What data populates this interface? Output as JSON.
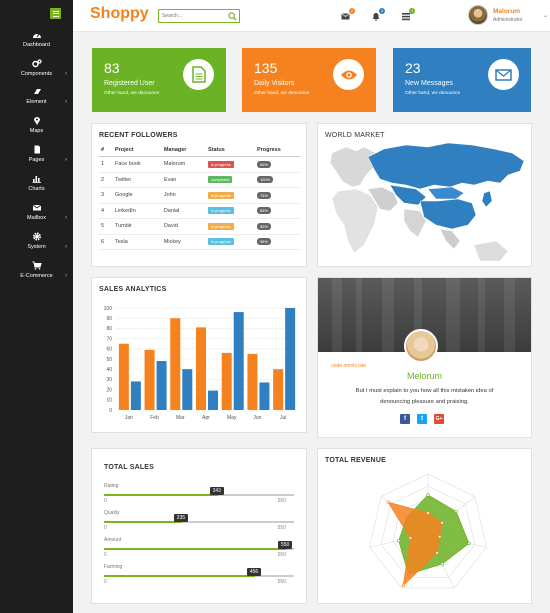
{
  "app": {
    "logo": "Shoppy"
  },
  "search": {
    "placeholder": "Search..."
  },
  "header": {
    "badges": {
      "mail": "2",
      "bell": "3",
      "tasks": "4"
    },
    "user_name": "Malorum",
    "user_role": "Administrator"
  },
  "sidebar": {
    "items": [
      {
        "label": "Dashboard"
      },
      {
        "label": "Components"
      },
      {
        "label": "Element"
      },
      {
        "label": "Maps"
      },
      {
        "label": "Pages"
      },
      {
        "label": "Charts"
      },
      {
        "label": "Mailbox"
      },
      {
        "label": "System"
      },
      {
        "label": "E-Commerce"
      }
    ]
  },
  "cards": [
    {
      "value": "83",
      "label": "Registered User",
      "sub": "Other hand, we denounce",
      "color": "#6bb225"
    },
    {
      "value": "135",
      "label": "Daily Visitors",
      "sub": "Other hand, we denounce",
      "color": "#f5821f"
    },
    {
      "value": "23",
      "label": "New Messages",
      "sub": "Other hand, we denounce",
      "color": "#2f7fc1"
    }
  ],
  "followers": {
    "title": "RECENT FOLLOWERS",
    "headers": [
      "#",
      "Project",
      "Manager",
      "Status",
      "Progress"
    ],
    "rows": [
      {
        "n": "1",
        "project": "Face book",
        "manager": "Malorum",
        "status": "in progress",
        "status_color": "#d9534f",
        "progress": "60%"
      },
      {
        "n": "2",
        "project": "Twitter",
        "manager": "Evan",
        "status": "completed",
        "status_color": "#5cb85c",
        "progress": "100%"
      },
      {
        "n": "3",
        "project": "Google",
        "manager": "John",
        "status": "in progress",
        "status_color": "#f0ad4e",
        "progress": "75%"
      },
      {
        "n": "4",
        "project": "LinkedIn",
        "manager": "Danial",
        "status": "in progress",
        "status_color": "#5bc0de",
        "progress": "65%"
      },
      {
        "n": "5",
        "project": "Tumblr",
        "manager": "David",
        "status": "in progress",
        "status_color": "#f0ad4e",
        "progress": "90%"
      },
      {
        "n": "6",
        "project": "Tesla",
        "manager": "Mickey",
        "status": "in progress",
        "status_color": "#5bc0de",
        "progress": "96%"
      }
    ]
  },
  "world": {
    "title": "WORLD MARKET"
  },
  "chart_data": {
    "type": "bar",
    "title": "SALES ANALYTICS",
    "categories": [
      "Jan",
      "Feb",
      "Mar",
      "Apr",
      "May",
      "Jun",
      "Jul"
    ],
    "series": [
      {
        "color": "#f5821f",
        "values": [
          65,
          59,
          90,
          81,
          56,
          55,
          40
        ]
      },
      {
        "color": "#2f7fc1",
        "values": [
          28,
          48,
          40,
          19,
          96,
          27,
          100
        ]
      }
    ],
    "ylim": [
      0,
      100
    ],
    "yticks": [
      "0",
      "10",
      "20",
      "30",
      "40",
      "50",
      "60",
      "70",
      "80",
      "90",
      "100"
    ],
    "grid": true
  },
  "profile": {
    "name": "Melorum",
    "tagline": "unde omnis iste",
    "text1": "But I must explain to you how all this mistaken idea of",
    "text2": "denouncing pleasure and praising.",
    "social": [
      "f",
      "t",
      "G+"
    ]
  },
  "total_sales": {
    "title": "TOTAL SALES",
    "items": [
      {
        "label": "Rating",
        "value": "343",
        "fraction": 0.624,
        "min": "0",
        "max": "550"
      },
      {
        "label": "Quality",
        "value": "235",
        "fraction": 0.427,
        "min": "0",
        "max": "550"
      },
      {
        "label": "Amount",
        "value": "550",
        "fraction": 1.0,
        "min": "0",
        "max": "550"
      },
      {
        "label": "Farming",
        "value": "456",
        "fraction": 0.829,
        "min": "0",
        "max": "550"
      }
    ]
  },
  "revenue": {
    "title": "TOTAL REVENUE",
    "series": [
      {
        "color": "#6bb225",
        "values": [
          0.65,
          0.6,
          0.7,
          0.55,
          0.75,
          0.5,
          0.45
        ]
      },
      {
        "color": "#f5821f",
        "values": [
          0.35,
          0.3,
          0.2,
          0.35,
          0.95,
          0.3,
          0.85
        ]
      }
    ]
  }
}
